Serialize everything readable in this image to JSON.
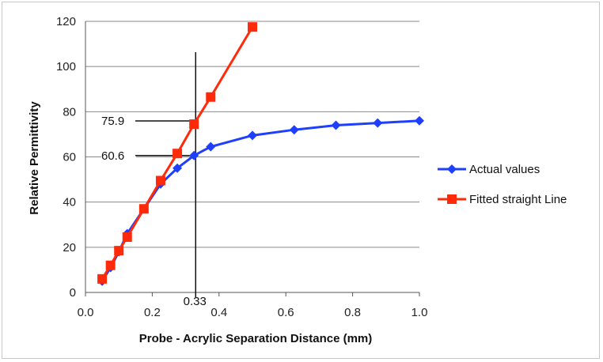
{
  "chart_data": {
    "type": "line",
    "xlabel": "Probe - Acrylic Separation Distance (mm)",
    "ylabel": "Relative Permittivity",
    "xlim": [
      0,
      1.0
    ],
    "ylim": [
      0,
      120
    ],
    "x_ticks": [
      "0.0",
      "0.2",
      "0.4",
      "0.6",
      "0.8",
      "1.0"
    ],
    "y_ticks": [
      "0",
      "20",
      "40",
      "60",
      "80",
      "100",
      "120"
    ],
    "grid": "horizontal",
    "legend_position": "right",
    "series": [
      {
        "name": "Actual values",
        "color": "#1f3fff",
        "marker": "diamond",
        "x": [
          0.05,
          0.075,
          0.1,
          0.125,
          0.175,
          0.225,
          0.275,
          0.325,
          0.375,
          0.5,
          0.625,
          0.75,
          0.875,
          1.0
        ],
        "y": [
          5,
          11,
          18,
          26,
          37,
          48,
          55,
          60.6,
          64.5,
          69.5,
          72,
          74,
          75,
          76
        ]
      },
      {
        "name": "Fitted straight Line",
        "color": "#ff2a0a",
        "marker": "square",
        "x": [
          0.05,
          0.075,
          0.1,
          0.125,
          0.175,
          0.225,
          0.275,
          0.325,
          0.375,
          0.5
        ],
        "y": [
          6,
          12,
          18.5,
          24.5,
          37,
          49.5,
          61.5,
          74.5,
          86.5,
          117.5
        ]
      }
    ],
    "annotations": {
      "vertical_line_x": 0.33,
      "vertical_line_label": "0.33",
      "h_lines": [
        {
          "y": 75.9,
          "label": "75.9"
        },
        {
          "y": 60.6,
          "label": "60.6"
        }
      ]
    }
  }
}
